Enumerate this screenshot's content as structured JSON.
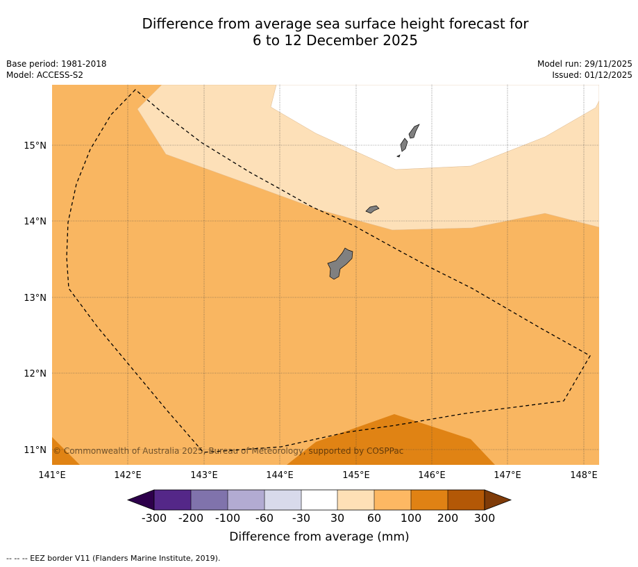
{
  "title": {
    "line1": "Difference from average sea surface height forecast for",
    "line2": "6 to 12 December 2025"
  },
  "meta": {
    "base_period": "Base period: 1981-2018",
    "model": "Model: ACCESS-S2",
    "model_run": "Model run: 29/11/2025",
    "issued": "Issued: 01/12/2025"
  },
  "map": {
    "lon_labels": [
      "141°E",
      "142°E",
      "143°E",
      "144°E",
      "145°E",
      "146°E",
      "147°E",
      "148°E"
    ],
    "lat_labels": [
      "15°N",
      "14°N",
      "13°N",
      "12°N",
      "11°N"
    ],
    "copyright": "© Commonwealth of Australia 2025, Bureau of Meteorology, supported by COSPPac",
    "colors": {
      "band_30_60": "#fde0b8",
      "band_60_100": "#f9b661",
      "band_100_200": "#e08314",
      "land": "#808080"
    }
  },
  "legend": {
    "ticks": [
      "-300",
      "-200",
      "-100",
      "-60",
      "-30",
      "30",
      "60",
      "100",
      "200",
      "300"
    ],
    "colors": [
      "#2d004b",
      "#542788",
      "#8073ac",
      "#b2abd2",
      "#d8daeb",
      "#ffffff",
      "#fee0b6",
      "#fdb863",
      "#e08214",
      "#b35806",
      "#7f3b08"
    ],
    "label": "Difference from average (mm)"
  },
  "footer": "--  --  -- EEZ border V11 (Flanders Marine Institute, 2019)."
}
